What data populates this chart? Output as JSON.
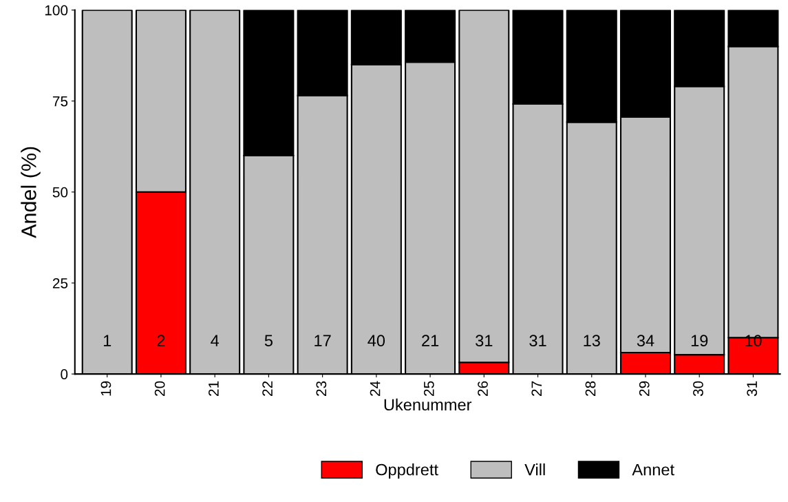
{
  "chart_data": {
    "type": "bar",
    "stacked": true,
    "xlabel": "Ukenummer",
    "ylabel": "Andel (%)",
    "categories": [
      "19",
      "20",
      "21",
      "22",
      "23",
      "24",
      "25",
      "26",
      "27",
      "28",
      "29",
      "30",
      "31"
    ],
    "series": [
      {
        "name": "Oppdrett",
        "color": "#ff0000",
        "values": [
          0,
          50,
          0,
          0,
          0,
          0,
          0,
          3.2,
          0,
          0,
          5.9,
          5.3,
          10
        ]
      },
      {
        "name": "Vill",
        "color": "#bebebe",
        "values": [
          100,
          50,
          100,
          60,
          76.5,
          85,
          85.7,
          96.8,
          74.2,
          69.2,
          64.7,
          73.7,
          80
        ]
      },
      {
        "name": "Annet",
        "color": "#000000",
        "values": [
          0,
          0,
          0,
          40,
          23.5,
          15,
          14.3,
          0,
          25.8,
          30.8,
          29.4,
          21,
          10
        ]
      }
    ],
    "ylim": [
      0,
      100
    ],
    "yticks": [
      0,
      25,
      50,
      75,
      100
    ],
    "grid": false,
    "legend": "bottom",
    "annotations": [
      "1",
      "2",
      "4",
      "5",
      "17",
      "40",
      "21",
      "31",
      "31",
      "13",
      "34",
      "19",
      "10"
    ]
  }
}
